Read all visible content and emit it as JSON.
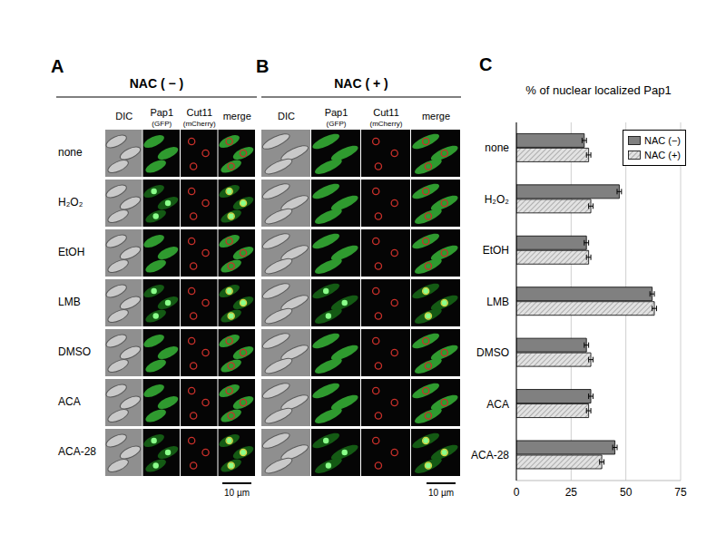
{
  "figure": {
    "panel_labels": [
      "A",
      "B",
      "C"
    ],
    "panel_titles": [
      "NAC ( − )",
      "NAC ( + )"
    ],
    "columns": [
      [
        "DIC"
      ],
      [
        "Pap1",
        "(GFP)"
      ],
      [
        "Cut11",
        "(mCherry)"
      ],
      [
        "merge"
      ]
    ],
    "rows": [
      "none",
      "H₂O₂",
      "EtOH",
      "LMB",
      "DMSO",
      "ACA",
      "ACA-28"
    ],
    "scale_bar": "10 µm"
  },
  "chart_data": {
    "type": "bar",
    "orientation": "horizontal",
    "title": "% of nuclear localized Pap1",
    "categories": [
      "none",
      "H₂O₂",
      "EtOH",
      "LMB",
      "DMSO",
      "ACA",
      "ACA-28"
    ],
    "series": [
      {
        "name": "NAC (−)",
        "color": "#808080",
        "values": [
          31,
          47,
          32,
          62,
          32,
          34,
          45
        ],
        "errors": [
          1,
          1,
          1,
          1,
          1,
          1,
          1
        ]
      },
      {
        "name": "NAC (+)",
        "color": "#e2e2e2",
        "values": [
          33,
          34,
          33,
          63,
          34,
          33,
          39
        ],
        "errors": [
          1,
          1,
          1,
          1,
          1,
          1,
          1
        ]
      }
    ],
    "xlim": [
      0,
      75
    ],
    "xticks": [
      0,
      25,
      50,
      75
    ],
    "grid": true,
    "legend": "upper right"
  }
}
